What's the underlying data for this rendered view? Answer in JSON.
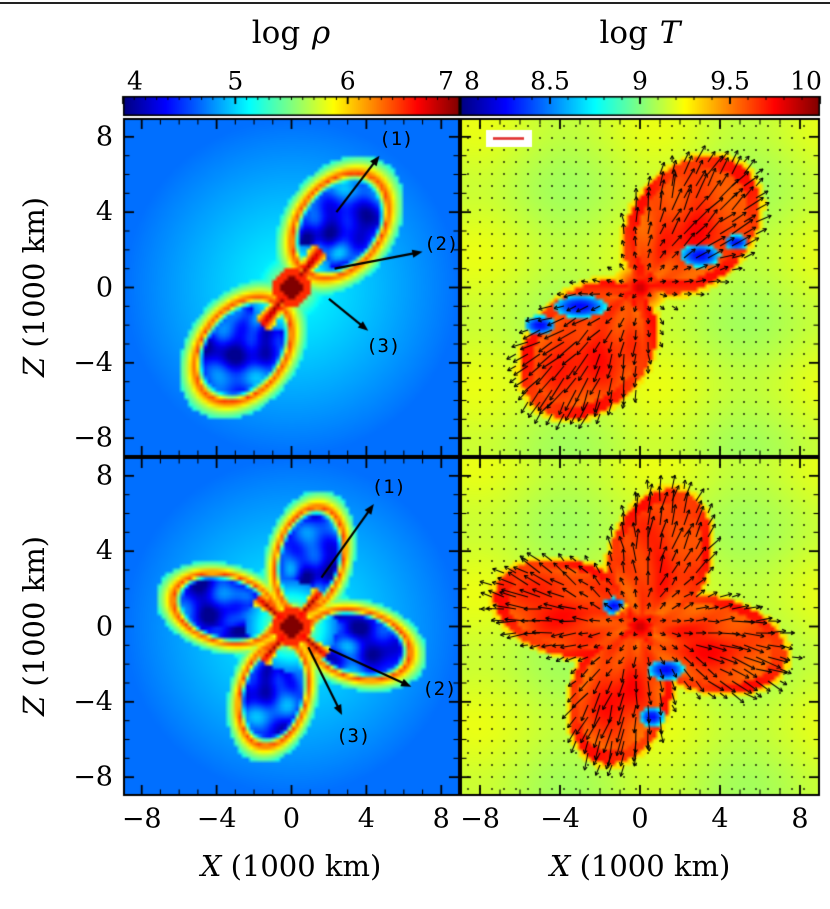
{
  "chart_data": {
    "type": "heatmap",
    "description": "2x2 panel hydrodynamic simulation figure: left column shows log density (log rho) slices in the X-Z plane with numbered feature arrows (1)(2)(3); right column shows log temperature (log T) with velocity vectors overlaid; two epochs (top and bottom rows). Jet colormap.",
    "colormap": "jet",
    "panel_grid": {
      "rows": 2,
      "cols": 2
    },
    "annotation_arrow_color": "#000000",
    "velocity_marker_color": "#e03030",
    "x_axis": {
      "label_var": "X",
      "label_unit": " (1000 km)",
      "range": [
        -9,
        9
      ],
      "major_ticks": [
        -8,
        -4,
        0,
        4,
        8
      ],
      "minor_step": 1,
      "tick_labels": [
        "−8",
        "−4",
        "0",
        "4",
        "8"
      ]
    },
    "z_axis": {
      "label_var": "Z",
      "label_unit": " (1000 km)",
      "range": [
        -9,
        9
      ],
      "major_ticks": [
        8,
        4,
        0,
        -4,
        -8
      ],
      "minor_step": 1,
      "tick_labels": [
        "8",
        "4",
        "0",
        "−4",
        "−8"
      ]
    },
    "colorbars": [
      {
        "id": "log-rho",
        "title_prefix": "log ",
        "title_symbol": "ρ",
        "range": [
          4,
          7
        ],
        "minor_step": 0.1,
        "tick_values": [
          4,
          5,
          6,
          7
        ],
        "tick_labels": [
          "4",
          "5",
          "6",
          "7"
        ]
      },
      {
        "id": "log-T",
        "title_prefix": "log ",
        "title_symbol": "T",
        "range": [
          8,
          10
        ],
        "minor_step": 0.1,
        "tick_values": [
          8,
          8.5,
          9,
          9.5,
          10
        ],
        "tick_labels": [
          "8",
          "8.5",
          "9",
          "9.5",
          "10"
        ]
      }
    ],
    "panels": [
      {
        "id": "density-top",
        "row": 0,
        "col": 0,
        "quantity": "log_rho",
        "value_range": [
          4,
          7
        ],
        "background": {
          "center": 5.15,
          "edge": 4.7
        },
        "core": {
          "radius": 0.55,
          "value": 7.0
        },
        "jets": {
          "angles_deg": [
            52,
            232
          ],
          "radius": 2.6,
          "half_width_deg": 13,
          "value": 6.9
        },
        "lobes": [
          {
            "angle_deg": 52,
            "dist": 4.2,
            "major": 3.6,
            "minor": 2.6
          },
          {
            "angle_deg": 232,
            "dist": 4.2,
            "major": 3.6,
            "minor": 2.6
          }
        ],
        "lobe_interior_value": 4.3,
        "lobe_rim_value": 6.45,
        "annotations": [
          {
            "label": "(1)",
            "tail": [
              2.4,
              4.0
            ],
            "head": [
              4.7,
              7.0
            ],
            "label_pos": [
              5.6,
              7.9
            ]
          },
          {
            "label": "(2)",
            "tail": [
              2.3,
              1.0
            ],
            "head": [
              7.0,
              1.9
            ],
            "label_pos": [
              8.0,
              2.3
            ]
          },
          {
            "label": "(3)",
            "tail": [
              2.0,
              -0.6
            ],
            "head": [
              4.1,
              -2.3
            ],
            "label_pos": [
              4.9,
              -3.1
            ]
          }
        ]
      },
      {
        "id": "temperature-top",
        "row": 0,
        "col": 1,
        "quantity": "log_T",
        "value_range": [
          8,
          10
        ],
        "background": {
          "center": 9.14,
          "edge": 9.1
        },
        "core": {
          "radius": 0.5,
          "value": 9.9
        },
        "lobes": [
          {
            "angle_deg": 52,
            "dist": 4.2,
            "major": 4.0,
            "minor": 3.0
          },
          {
            "angle_deg": 232,
            "dist": 4.2,
            "major": 4.0,
            "minor": 3.0
          }
        ],
        "lobe_value": 9.55,
        "rim_value": 9.68,
        "cold_spots": [
          [
            -3.0,
            -1.0,
            1.3,
            0.6
          ],
          [
            -5.0,
            -2.0,
            0.8,
            0.5
          ],
          [
            3.0,
            1.7,
            1.0,
            0.6
          ],
          [
            4.8,
            2.4,
            0.6,
            0.4
          ]
        ],
        "velocity_scale_marker": true
      },
      {
        "id": "density-bottom",
        "row": 1,
        "col": 0,
        "quantity": "log_rho",
        "value_range": [
          4,
          7
        ],
        "background": {
          "center": 5.15,
          "edge": 4.7
        },
        "core": {
          "radius": 0.55,
          "value": 7.0
        },
        "jets": {
          "angles_deg": [
            50,
            230,
            140,
            320
          ],
          "radius": 2.4,
          "half_width_deg": 10,
          "value": 6.9
        },
        "lobes": [
          {
            "angle_deg": 75,
            "dist": 3.7,
            "major": 3.3,
            "minor": 2.1
          },
          {
            "angle_deg": 165,
            "dist": 3.7,
            "major": 3.3,
            "minor": 2.1
          },
          {
            "angle_deg": 255,
            "dist": 3.7,
            "major": 3.3,
            "minor": 2.1
          },
          {
            "angle_deg": 345,
            "dist": 3.7,
            "major": 3.3,
            "minor": 2.1
          }
        ],
        "lobe_interior_value": 4.3,
        "lobe_rim_value": 6.45,
        "annotations": [
          {
            "label": "(1)",
            "tail": [
              1.6,
              2.6
            ],
            "head": [
              4.4,
              6.5
            ],
            "label_pos": [
              5.2,
              7.4
            ]
          },
          {
            "label": "(2)",
            "tail": [
              2.0,
              -1.2
            ],
            "head": [
              6.4,
              -3.2
            ],
            "label_pos": [
              7.9,
              -3.3
            ]
          },
          {
            "label": "(3)",
            "tail": [
              0.9,
              -1.1
            ],
            "head": [
              2.7,
              -4.7
            ],
            "label_pos": [
              3.3,
              -5.8
            ]
          }
        ]
      },
      {
        "id": "temperature-bottom",
        "row": 1,
        "col": 1,
        "quantity": "log_T",
        "value_range": [
          8,
          10
        ],
        "background": {
          "center": 9.14,
          "edge": 9.1
        },
        "core": {
          "radius": 0.5,
          "value": 9.9
        },
        "lobes": [
          {
            "angle_deg": 75,
            "dist": 3.7,
            "major": 3.8,
            "minor": 2.5
          },
          {
            "angle_deg": 165,
            "dist": 3.7,
            "major": 3.8,
            "minor": 2.5
          },
          {
            "angle_deg": 255,
            "dist": 3.7,
            "major": 3.8,
            "minor": 2.5
          },
          {
            "angle_deg": 345,
            "dist": 3.7,
            "major": 3.8,
            "minor": 2.5
          }
        ],
        "lobe_value": 9.55,
        "rim_value": 9.68,
        "cold_spots": [
          [
            1.3,
            -2.3,
            0.9,
            0.55
          ],
          [
            -1.3,
            1.1,
            0.6,
            0.45
          ],
          [
            0.6,
            -4.8,
            0.6,
            0.5
          ]
        ],
        "velocity_scale_marker": false
      }
    ]
  }
}
